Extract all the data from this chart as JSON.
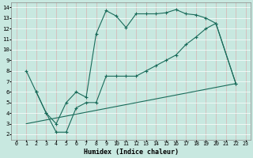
{
  "background_color": "#c8e8e0",
  "grid_color": "#e8c8c8",
  "line_color": "#1a6b5a",
  "xlabel": "Humidex (Indice chaleur)",
  "xlim": [
    -0.5,
    23.5
  ],
  "ylim": [
    1.5,
    14.5
  ],
  "xticks": [
    0,
    1,
    2,
    3,
    4,
    5,
    6,
    7,
    8,
    9,
    10,
    11,
    12,
    13,
    14,
    15,
    16,
    17,
    18,
    19,
    20,
    21,
    22,
    23
  ],
  "yticks": [
    2,
    3,
    4,
    5,
    6,
    7,
    8,
    9,
    10,
    11,
    12,
    13,
    14
  ],
  "series1_x": [
    1,
    2,
    3,
    4,
    5,
    6,
    7,
    8,
    9,
    10,
    11,
    12,
    13,
    14,
    15,
    16,
    17,
    18,
    19,
    20,
    22
  ],
  "series1_y": [
    8.0,
    6.0,
    4.0,
    3.0,
    5.0,
    6.0,
    5.5,
    11.5,
    13.7,
    13.2,
    12.1,
    13.4,
    13.4,
    13.4,
    13.5,
    13.8,
    13.4,
    13.3,
    13.0,
    12.5,
    6.8
  ],
  "series2_x": [
    2,
    3,
    4,
    5,
    6,
    7,
    8,
    9,
    10,
    11,
    12,
    13,
    14,
    15,
    16,
    17,
    18,
    19,
    20,
    22
  ],
  "series2_y": [
    6.0,
    4.0,
    2.2,
    2.2,
    4.5,
    5.0,
    5.0,
    7.5,
    7.5,
    7.5,
    7.5,
    8.0,
    8.5,
    9.0,
    9.5,
    10.5,
    11.2,
    12.0,
    12.5,
    6.8
  ],
  "series3_x": [
    1,
    22
  ],
  "series3_y": [
    3.0,
    6.8
  ]
}
